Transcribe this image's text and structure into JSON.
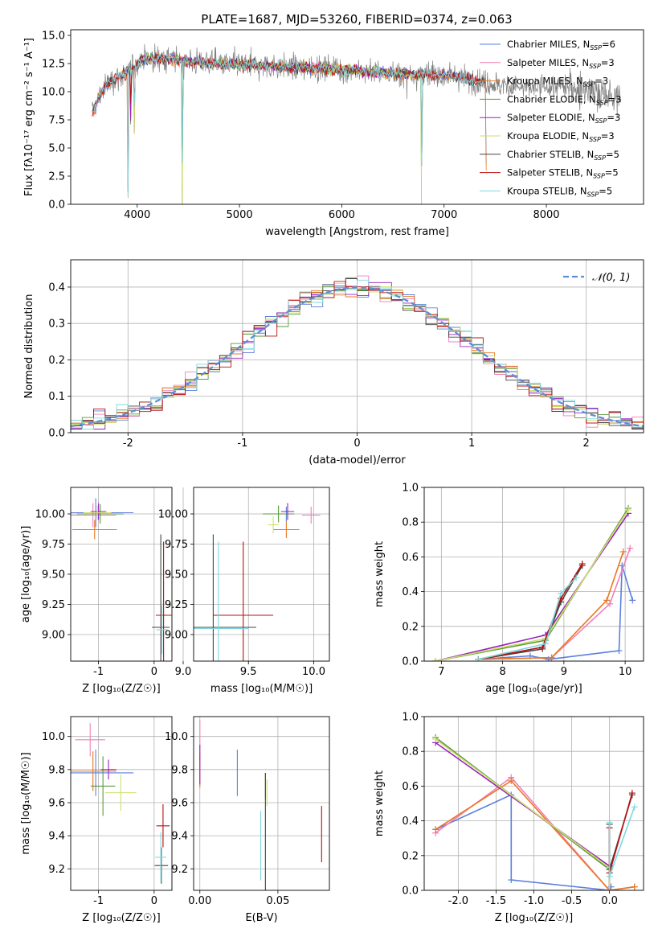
{
  "figure": {
    "title": "PLATE=1687, MJD=53260, FIBERID=0374, z=0.063"
  },
  "colors": {
    "Chabrier MILES": "#5b7fdc",
    "Salpeter MILES": "#f07fb6",
    "Kroupa MILES": "#e87722",
    "Chabrier ELODIE": "#5a9a3a",
    "Salpeter ELODIE": "#9a20c0",
    "Kroupa ELODIE": "#cde06a",
    "Chabrier STELIB": "#444444",
    "Salpeter STELIB": "#b81010",
    "Kroupa STELIB": "#7fd7e0",
    "data": "#808080",
    "normal": "#5b8fd6"
  },
  "chart_data": [
    {
      "id": "spectrum",
      "type": "line",
      "xlabel": "wavelength [Angstrom, rest frame]",
      "ylabel": "Flux [fλ10⁻¹⁷ erg cm⁻² s⁻¹ A⁻¹]",
      "xlim": [
        3350,
        8950
      ],
      "ylim": [
        0,
        15.5
      ],
      "xticks": [
        4000,
        5000,
        6000,
        7000,
        8000
      ],
      "yticks": [
        0.0,
        2.5,
        5.0,
        7.5,
        10.0,
        12.5,
        15.0
      ],
      "grid": false,
      "legend": "top-right",
      "legend_entries": [
        {
          "model": "Chabrier MILES",
          "label": "Chabrier MILES, N",
          "sub": "SSP",
          "tail": "=6"
        },
        {
          "model": "Salpeter MILES",
          "label": "Salpeter MILES, N",
          "sub": "SSP",
          "tail": "=3"
        },
        {
          "model": "Kroupa MILES",
          "label": "Kroupa MILES, N",
          "sub": "SSP",
          "tail": "=3"
        },
        {
          "model": "Chabrier ELODIE",
          "label": "Chabrier ELODIE, N",
          "sub": "SSP",
          "tail": "=3"
        },
        {
          "model": "Salpeter ELODIE",
          "label": "Salpeter ELODIE, N",
          "sub": "SSP",
          "tail": "=3"
        },
        {
          "model": "Kroupa ELODIE",
          "label": "Kroupa ELODIE, N",
          "sub": "SSP",
          "tail": "=3"
        },
        {
          "model": "Chabrier STELIB",
          "label": "Chabrier STELIB, N",
          "sub": "SSP",
          "tail": "=5"
        },
        {
          "model": "Salpeter STELIB",
          "label": "Salpeter STELIB, N",
          "sub": "SSP",
          "tail": "=5"
        },
        {
          "model": "Kroupa STELIB",
          "label": "Kroupa STELIB, N",
          "sub": "SSP",
          "tail": "=5"
        }
      ],
      "continuum": {
        "x": [
          3560,
          3650,
          3750,
          3850,
          3950,
          4050,
          4300,
          4600,
          5000,
          5500,
          6000,
          6500,
          7000,
          7400,
          7800,
          8200,
          8700
        ],
        "y": [
          8.0,
          10.0,
          11.0,
          11.4,
          12.0,
          13.0,
          12.9,
          12.6,
          12.4,
          12.2,
          12.0,
          11.6,
          11.5,
          10.8,
          10.3,
          10.5,
          9.5
        ]
      },
      "model_coverage": {
        "Chabrier MILES": [
          3560,
          7420
        ],
        "Salpeter MILES": [
          3560,
          7420
        ],
        "Kroupa MILES": [
          3560,
          7420
        ],
        "Chabrier ELODIE": [
          3900,
          6780
        ],
        "Salpeter ELODIE": [
          3900,
          6780
        ],
        "Kroupa ELODIE": [
          3900,
          6780
        ],
        "Chabrier STELIB": [
          3560,
          7400
        ],
        "Salpeter STELIB": [
          3560,
          7400
        ],
        "Kroupa STELIB": [
          3560,
          7400
        ]
      },
      "absorption_features": [
        {
          "x": 3910,
          "depth": 13.0
        },
        {
          "x": 3935,
          "depth": 5.5
        },
        {
          "x": 3970,
          "depth": 9.0
        },
        {
          "x": 4440,
          "depth": 13.8
        },
        {
          "x": 6780,
          "depth": 12.0
        },
        {
          "x": 7410,
          "depth": 11.0
        }
      ],
      "data_range": [
        3560,
        8730
      ]
    },
    {
      "id": "residuals",
      "type": "histogram",
      "xlabel": "(data-model)/error",
      "ylabel": "Normed distribution",
      "xlim": [
        -2.5,
        2.5
      ],
      "ylim": [
        0,
        0.475
      ],
      "xticks": [
        -2,
        -1,
        0,
        1,
        2
      ],
      "yticks": [
        0.0,
        0.1,
        0.2,
        0.3,
        0.4
      ],
      "grid": true,
      "legend": "top-right",
      "normal_curve": {
        "label": "𝒩(0, 1)",
        "mean": 0,
        "sigma": 1
      },
      "bin_edges_start": -2.5,
      "bin_width": 0.1
    },
    {
      "id": "age_vs_Z",
      "type": "errorbar",
      "xlabel": "Z [log₁₀(Z/Z☉)]",
      "ylabel": "age  [log₁₀(age/yr)]",
      "xlim": [
        -1.5,
        0.32
      ],
      "ylim": [
        8.78,
        10.22
      ],
      "xticks": [
        -1,
        0
      ],
      "yticks": [
        9.0,
        9.25,
        9.5,
        9.75,
        10.0
      ],
      "grid": true,
      "points": [
        {
          "model": "Chabrier MILES",
          "x": -1.05,
          "xerr": 0.68,
          "y": 10.01,
          "yerr": 0.12
        },
        {
          "model": "Salpeter MILES",
          "x": -1.1,
          "xerr": 0.42,
          "y": 9.99,
          "yerr": 0.1
        },
        {
          "model": "Kroupa MILES",
          "x": -1.07,
          "xerr": 0.4,
          "y": 9.87,
          "yerr": 0.08
        },
        {
          "model": "Chabrier ELODIE",
          "x": -0.97,
          "xerr": 0.42,
          "y": 10.0,
          "yerr": 0.08
        },
        {
          "model": "Salpeter ELODIE",
          "x": -1.0,
          "xerr": 0.14,
          "y": 10.02,
          "yerr": 0.07
        },
        {
          "model": "Kroupa ELODIE",
          "x": -1.02,
          "xerr": 0.25,
          "y": 10.01,
          "yerr": 0.06
        },
        {
          "model": "Chabrier STELIB",
          "x": 0.12,
          "xerr": 0.16,
          "y": 9.06,
          "yerr": 0.77
        },
        {
          "model": "Salpeter STELIB",
          "x": 0.17,
          "xerr": 0.14,
          "y": 9.16,
          "yerr": 0.61
        },
        {
          "model": "Kroupa STELIB",
          "x": 0.14,
          "xerr": 0.1,
          "y": 9.04,
          "yerr": 0.2
        }
      ]
    },
    {
      "id": "age_vs_mass",
      "type": "errorbar",
      "xlabel": "mass [log₁₀(M/M☉)]",
      "ylabel": "",
      "xlim": [
        9.08,
        10.12
      ],
      "ylim": [
        8.78,
        10.22
      ],
      "xticks": [
        9.0,
        9.5,
        10.0
      ],
      "yticks": [
        9.0,
        9.25,
        9.5,
        9.75,
        10.0
      ],
      "grid": true,
      "points": [
        {
          "model": "Chabrier MILES",
          "x": 9.79,
          "xerr": 0.06,
          "y": 10.0,
          "yerr": 0.06
        },
        {
          "model": "Salpeter MILES",
          "x": 9.98,
          "xerr": 0.07,
          "y": 9.99,
          "yerr": 0.07
        },
        {
          "model": "Kroupa MILES",
          "x": 9.79,
          "xerr": 0.1,
          "y": 9.87,
          "yerr": 0.07
        },
        {
          "model": "Chabrier ELODIE",
          "x": 9.73,
          "xerr": 0.12,
          "y": 10.0,
          "yerr": 0.07
        },
        {
          "model": "Salpeter ELODIE",
          "x": 9.8,
          "xerr": 0.05,
          "y": 10.02,
          "yerr": 0.07
        },
        {
          "model": "Kroupa ELODIE",
          "x": 9.69,
          "xerr": 0.04,
          "y": 9.91,
          "yerr": 0.07
        },
        {
          "model": "Chabrier STELIB",
          "x": 9.23,
          "xerr": 0.33,
          "y": 9.06,
          "yerr": 0.77
        },
        {
          "model": "Salpeter STELIB",
          "x": 9.46,
          "xerr": 0.23,
          "y": 9.16,
          "yerr": 0.61
        },
        {
          "model": "Kroupa STELIB",
          "x": 9.27,
          "xerr": 0.23,
          "y": 9.05,
          "yerr": 0.72
        }
      ]
    },
    {
      "id": "weight_vs_age",
      "type": "line",
      "xlabel": "age  [log₁₀(age/yr)]",
      "ylabel": "mass weight",
      "xlim": [
        6.72,
        10.3
      ],
      "ylim": [
        0,
        1.0
      ],
      "xticks": [
        7,
        8,
        9,
        10
      ],
      "yticks": [
        0.0,
        0.2,
        0.4,
        0.6,
        0.8,
        1.0
      ],
      "grid": true,
      "series": [
        {
          "model": "Chabrier MILES",
          "x": [
            7.6,
            8.45,
            8.75,
            9.9,
            9.95,
            10.12
          ],
          "y": [
            0.01,
            0.03,
            0.01,
            0.06,
            0.55,
            0.35
          ]
        },
        {
          "model": "Salpeter MILES",
          "x": [
            7.6,
            8.8,
            9.75,
            10.08
          ],
          "y": [
            0.01,
            0.02,
            0.33,
            0.65
          ]
        },
        {
          "model": "Kroupa MILES",
          "x": [
            7.6,
            8.8,
            9.7,
            9.97
          ],
          "y": [
            0.01,
            0.02,
            0.35,
            0.63
          ]
        },
        {
          "model": "Chabrier ELODIE",
          "x": [
            6.9,
            8.7,
            10.05
          ],
          "y": [
            0.0,
            0.12,
            0.88
          ]
        },
        {
          "model": "Salpeter ELODIE",
          "x": [
            6.9,
            8.7,
            10.05
          ],
          "y": [
            0.0,
            0.15,
            0.85
          ]
        },
        {
          "model": "Kroupa ELODIE",
          "x": [
            6.9,
            8.7,
            10.05
          ],
          "y": [
            0.0,
            0.13,
            0.87
          ]
        },
        {
          "model": "Chabrier STELIB",
          "x": [
            7.6,
            8.65,
            8.95,
            9.3
          ],
          "y": [
            0.01,
            0.07,
            0.34,
            0.55
          ]
        },
        {
          "model": "Salpeter STELIB",
          "x": [
            7.6,
            8.65,
            8.95,
            9.3
          ],
          "y": [
            0.01,
            0.08,
            0.36,
            0.56
          ]
        },
        {
          "model": "Kroupa STELIB",
          "x": [
            7.6,
            8.7,
            8.95,
            9.2
          ],
          "y": [
            0.01,
            0.1,
            0.39,
            0.48
          ]
        }
      ]
    },
    {
      "id": "mass_vs_Z",
      "type": "errorbar",
      "xlabel": "Z [log₁₀(Z/Z☉)]",
      "ylabel": "mass [log₁₀(M/M☉)]",
      "xlim": [
        -1.5,
        0.32
      ],
      "ylim": [
        9.07,
        10.12
      ],
      "xticks": [
        -1,
        0
      ],
      "yticks": [
        9.2,
        9.4,
        9.6,
        9.8,
        10.0
      ],
      "grid": true,
      "points": [
        {
          "model": "Chabrier MILES",
          "x": -1.05,
          "xerr": 0.68,
          "y": 9.78,
          "yerr": 0.14
        },
        {
          "model": "Salpeter MILES",
          "x": -1.15,
          "xerr": 0.27,
          "y": 9.98,
          "yerr": 0.1
        },
        {
          "model": "Kroupa MILES",
          "x": -1.1,
          "xerr": 0.42,
          "y": 9.79,
          "yerr": 0.12
        },
        {
          "model": "Chabrier ELODIE",
          "x": -0.92,
          "xerr": 0.22,
          "y": 9.7,
          "yerr": 0.18
        },
        {
          "model": "Salpeter ELODIE",
          "x": -0.82,
          "xerr": 0.14,
          "y": 9.8,
          "yerr": 0.06
        },
        {
          "model": "Kroupa ELODIE",
          "x": -0.6,
          "xerr": 0.28,
          "y": 9.66,
          "yerr": 0.11
        },
        {
          "model": "Chabrier STELIB",
          "x": 0.13,
          "xerr": 0.12,
          "y": 9.22,
          "yerr": 0.11
        },
        {
          "model": "Salpeter STELIB",
          "x": 0.16,
          "xerr": 0.12,
          "y": 9.46,
          "yerr": 0.13
        },
        {
          "model": "Kroupa STELIB",
          "x": 0.12,
          "xerr": 0.1,
          "y": 9.27,
          "yerr": 0.15
        }
      ]
    },
    {
      "id": "mass_vs_EBV",
      "type": "errorbar",
      "xlabel": "E(B-V)",
      "ylabel": "",
      "xlim": [
        -0.004,
        0.083
      ],
      "ylim": [
        9.07,
        10.12
      ],
      "xticks": [
        0.0,
        0.05
      ],
      "yticks": [
        9.2,
        9.4,
        9.6,
        9.8,
        10.0
      ],
      "grid": true,
      "points": [
        {
          "model": "Chabrier MILES",
          "x": 0.024,
          "xerr": 0,
          "y": 9.78,
          "yerr": 0.14
        },
        {
          "model": "Salpeter MILES",
          "x": 0.0,
          "xerr": 0,
          "y": 9.98,
          "yerr": 0.12
        },
        {
          "model": "Kroupa MILES",
          "x": 0.0,
          "xerr": 0,
          "y": 9.79,
          "yerr": 0.1
        },
        {
          "model": "Chabrier ELODIE",
          "x": 0.042,
          "xerr": 0,
          "y": 9.7,
          "yerr": 0.08
        },
        {
          "model": "Salpeter ELODIE",
          "x": 0.0,
          "xerr": 0,
          "y": 9.83,
          "yerr": 0.12
        },
        {
          "model": "Kroupa ELODIE",
          "x": 0.043,
          "xerr": 0,
          "y": 9.66,
          "yerr": 0.08
        },
        {
          "model": "Chabrier STELIB",
          "x": 0.042,
          "xerr": 0,
          "y": 9.4,
          "yerr": 0.38
        },
        {
          "model": "Salpeter STELIB",
          "x": 0.078,
          "xerr": 0,
          "y": 9.41,
          "yerr": 0.17
        },
        {
          "model": "Kroupa STELIB",
          "x": 0.039,
          "xerr": 0,
          "y": 9.34,
          "yerr": 0.21
        }
      ]
    },
    {
      "id": "weight_vs_Z",
      "type": "line",
      "xlabel": "Z [log₁₀(Z/Z☉)]",
      "ylabel": "mass weight",
      "xlim": [
        -2.45,
        0.45
      ],
      "ylim": [
        0,
        1.0
      ],
      "xticks": [
        -2.0,
        -1.5,
        -1.0,
        -0.5,
        0.0
      ],
      "yticks": [
        0.0,
        0.2,
        0.4,
        0.6,
        0.8,
        1.0
      ],
      "grid": true,
      "series": [
        {
          "model": "Chabrier MILES",
          "x": [
            -2.3,
            -1.3,
            -1.3,
            0.0,
            0.02
          ],
          "y": [
            0.35,
            0.55,
            0.06,
            0.0,
            0.02
          ]
        },
        {
          "model": "Salpeter MILES",
          "x": [
            -2.3,
            -1.3,
            0.0,
            0.33
          ],
          "y": [
            0.33,
            0.65,
            0.0,
            0.02
          ]
        },
        {
          "model": "Kroupa MILES",
          "x": [
            -2.3,
            -1.3,
            0.0,
            0.33
          ],
          "y": [
            0.35,
            0.63,
            0.0,
            0.02
          ]
        },
        {
          "model": "Chabrier ELODIE",
          "x": [
            -2.3,
            0.0,
            0.0
          ],
          "y": [
            0.88,
            0.12,
            0.0
          ]
        },
        {
          "model": "Salpeter ELODIE",
          "x": [
            -2.3,
            0.0,
            0.0
          ],
          "y": [
            0.85,
            0.14,
            0.0
          ]
        },
        {
          "model": "Kroupa ELODIE",
          "x": [
            -2.3,
            0.0,
            0.0
          ],
          "y": [
            0.87,
            0.13,
            0.0
          ]
        },
        {
          "model": "Chabrier STELIB",
          "x": [
            0.0,
            0.0,
            0.3
          ],
          "y": [
            0.38,
            0.12,
            0.55
          ]
        },
        {
          "model": "Salpeter STELIB",
          "x": [
            0.0,
            0.0,
            0.3
          ],
          "y": [
            0.36,
            0.1,
            0.56
          ]
        },
        {
          "model": "Kroupa STELIB",
          "x": [
            0.0,
            0.0,
            0.33
          ],
          "y": [
            0.39,
            0.08,
            0.48
          ]
        }
      ]
    }
  ]
}
